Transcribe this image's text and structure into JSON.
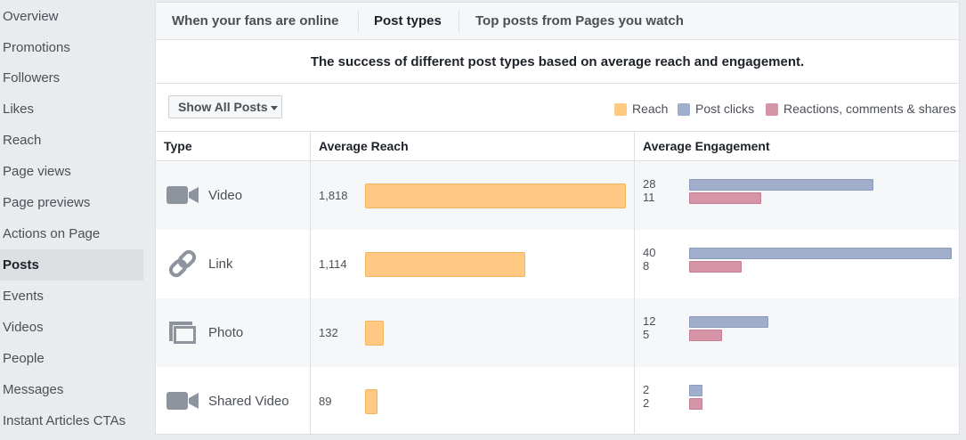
{
  "sidebar": {
    "items": [
      {
        "label": "Overview",
        "active": false
      },
      {
        "label": "Promotions",
        "active": false
      },
      {
        "label": "Followers",
        "active": false
      },
      {
        "label": "Likes",
        "active": false
      },
      {
        "label": "Reach",
        "active": false
      },
      {
        "label": "Page views",
        "active": false
      },
      {
        "label": "Page previews",
        "active": false
      },
      {
        "label": "Actions on Page",
        "active": false
      },
      {
        "label": "Posts",
        "active": true
      },
      {
        "label": "Events",
        "active": false
      },
      {
        "label": "Videos",
        "active": false
      },
      {
        "label": "People",
        "active": false
      },
      {
        "label": "Messages",
        "active": false
      },
      {
        "label": "Instant Articles CTAs",
        "active": false
      }
    ]
  },
  "tabs": [
    {
      "label": "When your fans are online",
      "active": false
    },
    {
      "label": "Post types",
      "active": true
    },
    {
      "label": "Top posts from Pages you watch",
      "active": false
    }
  ],
  "subtitle": "The success of different post types based on average reach and engagement.",
  "filter": {
    "label": "Show All Posts"
  },
  "legend": [
    {
      "label": "Reach",
      "color": "#ffc983"
    },
    {
      "label": "Post clicks",
      "color": "#a0aecb"
    },
    {
      "label": "Reactions, comments & shares",
      "color": "#d595a7"
    }
  ],
  "table": {
    "headers": [
      "Type",
      "Average Reach",
      "Average Engagement"
    ],
    "rows": [
      {
        "type": "Video",
        "icon": "video-camera-icon",
        "reach": "1,818",
        "reach_value": 1818,
        "clicks": "28",
        "clicks_value": 28,
        "reactions": "11",
        "reactions_value": 11
      },
      {
        "type": "Link",
        "icon": "link-icon",
        "reach": "1,114",
        "reach_value": 1114,
        "clicks": "40",
        "clicks_value": 40,
        "reactions": "8",
        "reactions_value": 8
      },
      {
        "type": "Photo",
        "icon": "photo-icon",
        "reach": "132",
        "reach_value": 132,
        "clicks": "12",
        "clicks_value": 12,
        "reactions": "5",
        "reactions_value": 5
      },
      {
        "type": "Shared Video",
        "icon": "video-camera-icon",
        "reach": "89",
        "reach_value": 89,
        "clicks": "2",
        "clicks_value": 2,
        "reactions": "2",
        "reactions_value": 2
      }
    ]
  },
  "colors": {
    "reach": "#ffc983",
    "post_clicks": "#a0aecb",
    "reactions": "#d595a7",
    "active_sidebar": "#dddfe2"
  }
}
